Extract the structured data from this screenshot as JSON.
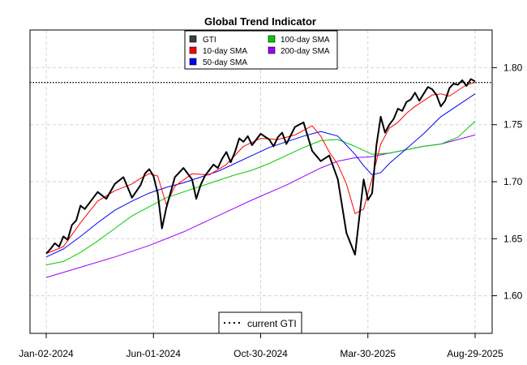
{
  "chart_data": {
    "type": "line",
    "title": "Global Trend Indicator",
    "xlabel": "",
    "ylabel": "",
    "x_ticks": [
      "Jan-02-2024",
      "Jun-01-2024",
      "Oct-30-2024",
      "Mar-30-2025",
      "Aug-29-2025"
    ],
    "x_range": [
      0,
      100
    ],
    "ylim": [
      1.567,
      1.833
    ],
    "y_ticks": [
      1.6,
      1.65,
      1.7,
      1.75,
      1.8
    ],
    "y_tick_labels": [
      "1.60",
      "1.65",
      "1.70",
      "1.75",
      "1.80"
    ],
    "grid": true,
    "reference_line": {
      "label": "current GTI",
      "value": 1.787,
      "style": "dotted",
      "color": "#000000"
    },
    "legend_position": "top-center",
    "series": [
      {
        "name": "GTI",
        "color": "#000000",
        "legend_color": "#3d3d3d",
        "x": [
          0,
          1,
          2,
          3,
          4,
          5,
          6,
          7,
          8,
          9,
          10,
          12,
          14,
          16,
          18,
          20,
          22,
          23,
          24,
          25,
          26,
          27,
          28,
          30,
          32,
          34,
          35,
          36,
          37,
          38,
          39,
          40,
          41,
          42,
          43,
          44,
          45,
          46,
          47,
          48,
          50,
          52,
          53,
          54,
          55,
          56,
          58,
          60,
          62,
          64,
          66,
          68,
          70,
          72,
          74,
          75,
          76,
          77,
          78,
          79,
          80,
          81,
          82,
          83,
          84,
          85,
          86,
          87,
          88,
          89,
          90,
          91,
          92,
          93,
          94,
          95,
          96,
          97,
          98,
          99,
          100
        ],
        "values": [
          1.637,
          1.641,
          1.646,
          1.643,
          1.652,
          1.649,
          1.662,
          1.666,
          1.679,
          1.676,
          1.681,
          1.691,
          1.685,
          1.698,
          1.704,
          1.686,
          1.697,
          1.707,
          1.711,
          1.705,
          1.69,
          1.659,
          1.677,
          1.704,
          1.712,
          1.702,
          1.685,
          1.697,
          1.705,
          1.71,
          1.715,
          1.712,
          1.72,
          1.726,
          1.717,
          1.726,
          1.738,
          1.735,
          1.74,
          1.732,
          1.742,
          1.737,
          1.731,
          1.739,
          1.743,
          1.733,
          1.748,
          1.752,
          1.727,
          1.718,
          1.723,
          1.702,
          1.655,
          1.636,
          1.702,
          1.684,
          1.69,
          1.732,
          1.757,
          1.743,
          1.75,
          1.755,
          1.764,
          1.762,
          1.77,
          1.772,
          1.778,
          1.771,
          1.777,
          1.783,
          1.781,
          1.776,
          1.766,
          1.771,
          1.782,
          1.786,
          1.785,
          1.789,
          1.784,
          1.79,
          1.788
        ]
      },
      {
        "name": "10-day SMA",
        "color": "#ff0000",
        "x": [
          0,
          4,
          8,
          12,
          16,
          20,
          22,
          24,
          26,
          28,
          30,
          34,
          38,
          42,
          46,
          50,
          54,
          58,
          62,
          64,
          66,
          68,
          70,
          72,
          74,
          76,
          78,
          80,
          82,
          84,
          86,
          88,
          90,
          92,
          94,
          96,
          98,
          100
        ],
        "values": [
          1.637,
          1.643,
          1.664,
          1.683,
          1.692,
          1.698,
          1.703,
          1.707,
          1.705,
          1.68,
          1.696,
          1.707,
          1.706,
          1.715,
          1.731,
          1.738,
          1.737,
          1.741,
          1.749,
          1.74,
          1.726,
          1.715,
          1.698,
          1.672,
          1.676,
          1.703,
          1.733,
          1.747,
          1.752,
          1.76,
          1.766,
          1.771,
          1.776,
          1.777,
          1.775,
          1.78,
          1.785,
          1.787
        ]
      },
      {
        "name": "50-day SMA",
        "color": "#0000ff",
        "x": [
          0,
          4,
          8,
          12,
          16,
          20,
          24,
          28,
          32,
          36,
          40,
          44,
          48,
          52,
          56,
          60,
          64,
          68,
          72,
          74,
          76,
          78,
          80,
          84,
          88,
          92,
          96,
          100
        ],
        "values": [
          1.634,
          1.641,
          1.652,
          1.664,
          1.675,
          1.683,
          1.69,
          1.695,
          1.699,
          1.704,
          1.709,
          1.716,
          1.723,
          1.73,
          1.735,
          1.74,
          1.744,
          1.74,
          1.724,
          1.714,
          1.706,
          1.708,
          1.716,
          1.729,
          1.742,
          1.757,
          1.767,
          1.777
        ]
      },
      {
        "name": "100-day SMA",
        "color": "#00cc00",
        "x": [
          0,
          4,
          8,
          12,
          16,
          20,
          24,
          28,
          32,
          36,
          40,
          44,
          48,
          52,
          56,
          60,
          64,
          68,
          72,
          76,
          80,
          84,
          88,
          92,
          96,
          98,
          100
        ],
        "values": [
          1.627,
          1.63,
          1.638,
          1.648,
          1.659,
          1.67,
          1.678,
          1.686,
          1.691,
          1.696,
          1.701,
          1.706,
          1.71,
          1.716,
          1.723,
          1.73,
          1.736,
          1.737,
          1.731,
          1.724,
          1.725,
          1.728,
          1.731,
          1.733,
          1.739,
          1.746,
          1.753
        ]
      },
      {
        "name": "200-day SMA",
        "color": "#9900ff",
        "x": [
          0,
          8,
          16,
          24,
          32,
          40,
          48,
          56,
          64,
          68,
          72,
          76,
          80,
          84,
          88,
          92,
          96,
          100
        ],
        "values": [
          1.616,
          1.625,
          1.634,
          1.644,
          1.656,
          1.67,
          1.684,
          1.697,
          1.712,
          1.718,
          1.721,
          1.722,
          1.725,
          1.728,
          1.731,
          1.733,
          1.737,
          1.741
        ]
      }
    ]
  }
}
